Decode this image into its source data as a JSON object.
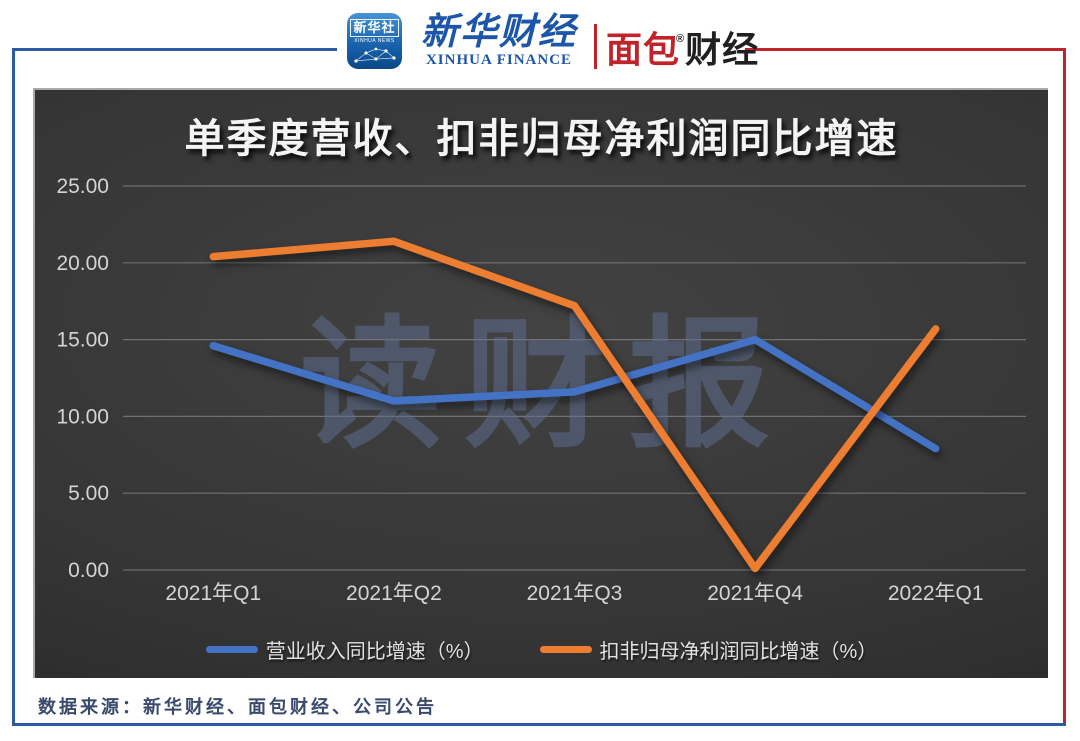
{
  "header": {
    "xinhua_icon": {
      "cn": "新华社",
      "en": "XINHUA NEWS"
    },
    "xinhua_finance": {
      "cn": "新华财经",
      "en": "XINHUA FINANCE"
    },
    "mianbao": {
      "part1": "面包",
      "part2": "财经",
      "reg": "®"
    }
  },
  "chart_data": {
    "type": "line",
    "title": "单季度营收、扣非归母净利润同比增速",
    "watermark": "读财报",
    "categories": [
      "2021年Q1",
      "2021年Q2",
      "2021年Q3",
      "2021年Q4",
      "2022年Q1"
    ],
    "series": [
      {
        "name": "营业收入同比增速（%）",
        "color": "#4472C4",
        "values": [
          14.6,
          11.0,
          11.6,
          15.0,
          7.9
        ]
      },
      {
        "name": "扣非归母净利润同比增速（%）",
        "color": "#ED7D31",
        "values": [
          20.4,
          21.4,
          17.2,
          0.1,
          15.7
        ]
      }
    ],
    "ylim": [
      0,
      25
    ],
    "yticks": [
      0,
      5,
      10,
      15,
      20,
      25
    ],
    "ytick_labels": [
      "0.00",
      "5.00",
      "10.00",
      "15.00",
      "20.00",
      "25.00"
    ],
    "grid": "horizontal",
    "legend_position": "bottom",
    "xlabel": "",
    "ylabel": ""
  },
  "footer": {
    "source": "数据来源：新华财经、面包财经、公司公告"
  },
  "colors": {
    "frame_blue": "#2b5ca3",
    "frame_red": "#c2232a",
    "panel_background": "#353535",
    "series_blue": "#4472C4",
    "series_orange": "#ED7D31",
    "tick_text": "#d4d4d4",
    "watermark_blue": "#5f7296"
  }
}
